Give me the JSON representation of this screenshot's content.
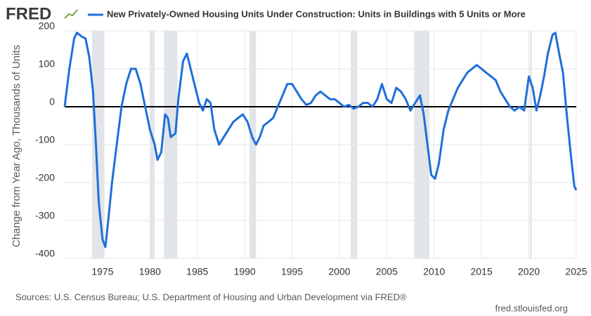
{
  "chart_data": {
    "type": "line",
    "logo": "FRED",
    "title": "New Privately-Owned Housing Units Under Construction: Units in Buildings with 5 Units or More",
    "ylabel": "Change from Year Ago, Thousands of Units",
    "source": "Sources: U.S. Census Bureau; U.S. Department of Housing and Urban Development via FRED®",
    "url": "fred.stlouisfed.org",
    "xlim": [
      1971,
      2025
    ],
    "xticks": [
      1975,
      1980,
      1985,
      1990,
      1995,
      2000,
      2005,
      2010,
      2015,
      2020,
      2025
    ],
    "ylim": [
      -400,
      200
    ],
    "yticks": [
      -400,
      -300,
      -200,
      -100,
      0,
      100,
      200
    ],
    "grid": true,
    "recessions": [
      [
        1973.9,
        1975.2
      ],
      [
        1980.0,
        1980.5
      ],
      [
        1981.5,
        1982.9
      ],
      [
        1990.5,
        1991.2
      ],
      [
        2001.2,
        2001.9
      ],
      [
        2007.9,
        2009.5
      ],
      [
        2020.1,
        2020.3
      ]
    ],
    "x": [
      1971.0,
      1971.5,
      1972.0,
      1972.3,
      1972.8,
      1973.2,
      1973.6,
      1974.0,
      1974.3,
      1974.6,
      1975.0,
      1975.3,
      1975.6,
      1976.0,
      1976.5,
      1977.0,
      1977.5,
      1978.0,
      1978.5,
      1979.0,
      1979.5,
      1980.0,
      1980.5,
      1980.8,
      1981.2,
      1981.6,
      1981.9,
      1982.2,
      1982.7,
      1983.0,
      1983.5,
      1983.9,
      1984.3,
      1984.8,
      1985.2,
      1985.6,
      1986.0,
      1986.4,
      1986.8,
      1987.3,
      1987.8,
      1988.3,
      1988.8,
      1989.3,
      1989.8,
      1990.3,
      1990.8,
      1991.2,
      1991.6,
      1992.0,
      1992.5,
      1993.0,
      1993.5,
      1994.0,
      1994.5,
      1995.0,
      1995.5,
      1996.0,
      1996.5,
      1997.0,
      1997.5,
      1998.0,
      1998.5,
      1999.0,
      1999.5,
      2000.0,
      2000.5,
      2001.0,
      2001.5,
      2002.0,
      2002.5,
      2003.0,
      2003.5,
      2004.0,
      2004.5,
      2005.0,
      2005.5,
      2006.0,
      2006.5,
      2007.0,
      2007.5,
      2008.0,
      2008.5,
      2008.9,
      2009.3,
      2009.7,
      2010.1,
      2010.5,
      2011.0,
      2011.5,
      2012.0,
      2012.5,
      2013.0,
      2013.5,
      2014.0,
      2014.5,
      2015.0,
      2015.5,
      2016.0,
      2016.5,
      2017.0,
      2017.5,
      2018.0,
      2018.5,
      2019.0,
      2019.5,
      2020.0,
      2020.4,
      2020.8,
      2021.2,
      2021.6,
      2022.0,
      2022.5,
      2022.8,
      2023.2,
      2023.6,
      2024.0,
      2024.4,
      2024.8,
      2025.0
    ],
    "series": [
      {
        "name": "New Privately-Owned Housing Units Under Construction: Units in Buildings with 5 Units or More",
        "color": "#1f6fd8",
        "values": [
          0,
          100,
          180,
          195,
          185,
          180,
          130,
          40,
          -100,
          -250,
          -350,
          -370,
          -300,
          -200,
          -100,
          0,
          60,
          100,
          100,
          60,
          0,
          -60,
          -100,
          -140,
          -120,
          -20,
          -30,
          -80,
          -70,
          20,
          120,
          140,
          100,
          50,
          10,
          -10,
          20,
          10,
          -60,
          -100,
          -80,
          -60,
          -40,
          -30,
          -20,
          -40,
          -80,
          -100,
          -80,
          -50,
          -40,
          -30,
          0,
          30,
          60,
          60,
          40,
          20,
          5,
          10,
          30,
          40,
          30,
          20,
          20,
          10,
          0,
          5,
          -5,
          0,
          10,
          10,
          0,
          20,
          60,
          20,
          10,
          50,
          40,
          20,
          -10,
          10,
          30,
          -20,
          -100,
          -180,
          -190,
          -150,
          -60,
          -10,
          20,
          50,
          70,
          90,
          100,
          110,
          100,
          90,
          80,
          70,
          40,
          20,
          0,
          -10,
          0,
          -10,
          80,
          50,
          -10,
          30,
          80,
          140,
          190,
          195,
          140,
          90,
          -20,
          -120,
          -210,
          -220
        ]
      }
    ]
  }
}
